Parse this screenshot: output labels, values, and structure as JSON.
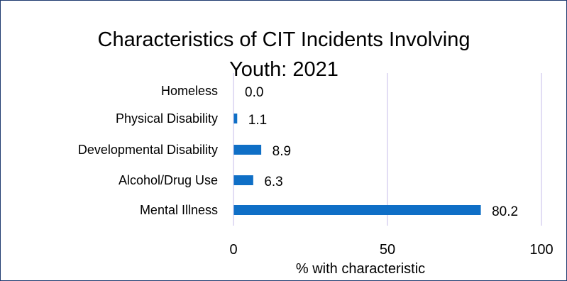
{
  "chart_data": {
    "type": "bar",
    "orientation": "horizontal",
    "title_lines": [
      "Characteristics of CIT Incidents Involving",
      "Youth: 2021"
    ],
    "categories": [
      "Homeless",
      "Physical Disability",
      "Developmental Disability",
      "Alcohol/Drug Use",
      "Mental Illness"
    ],
    "values": [
      0.0,
      1.1,
      8.9,
      6.3,
      80.2
    ],
    "value_labels": [
      "0.0",
      "1.1",
      "8.9",
      "6.3",
      "80.2"
    ],
    "xlabel": "% with characteristic",
    "xticks": [
      0,
      50,
      100
    ],
    "xtick_labels": [
      "0",
      "50",
      "100"
    ],
    "xlim": [
      0,
      100
    ],
    "grid": "vertical",
    "legend": "none",
    "bar_color": "#0f6fc6",
    "grid_color": "#d9d2f0",
    "text_color": "#000000"
  }
}
